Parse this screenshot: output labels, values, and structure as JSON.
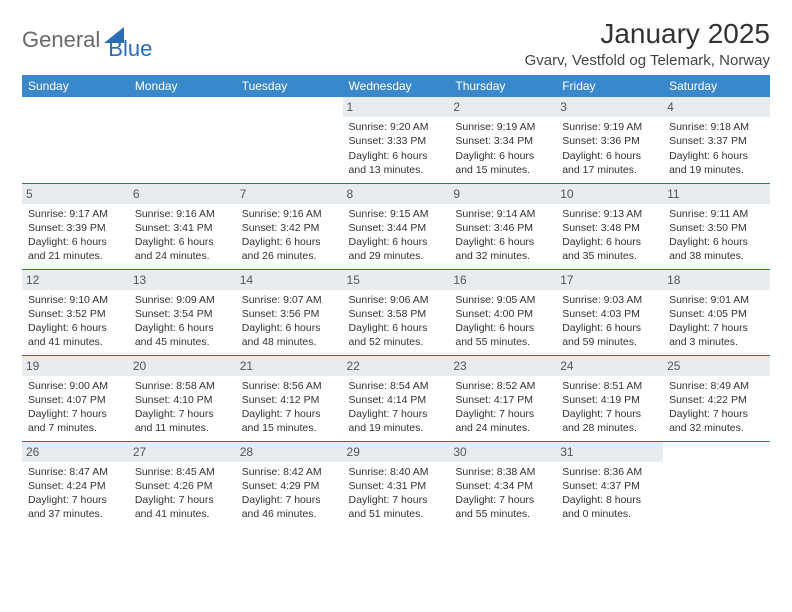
{
  "brand": {
    "part1": "General",
    "part2": "Blue"
  },
  "title": "January 2025",
  "location": "Gvarv, Vestfold og Telemark, Norway",
  "colors": {
    "header_bg": "#3a88cc",
    "header_text": "#ffffff",
    "daynum_bg": "#e9ecef",
    "row_border": "#2a6db5",
    "logo_triangle": "#2a6db5",
    "text": "#333333"
  },
  "weekdays": [
    "Sunday",
    "Monday",
    "Tuesday",
    "Wednesday",
    "Thursday",
    "Friday",
    "Saturday"
  ],
  "weeks": [
    [
      {
        "day": "",
        "sunrise": "",
        "sunset": "",
        "daylight": ""
      },
      {
        "day": "",
        "sunrise": "",
        "sunset": "",
        "daylight": ""
      },
      {
        "day": "",
        "sunrise": "",
        "sunset": "",
        "daylight": ""
      },
      {
        "day": "1",
        "sunrise": "Sunrise: 9:20 AM",
        "sunset": "Sunset: 3:33 PM",
        "daylight": "Daylight: 6 hours and 13 minutes."
      },
      {
        "day": "2",
        "sunrise": "Sunrise: 9:19 AM",
        "sunset": "Sunset: 3:34 PM",
        "daylight": "Daylight: 6 hours and 15 minutes."
      },
      {
        "day": "3",
        "sunrise": "Sunrise: 9:19 AM",
        "sunset": "Sunset: 3:36 PM",
        "daylight": "Daylight: 6 hours and 17 minutes."
      },
      {
        "day": "4",
        "sunrise": "Sunrise: 9:18 AM",
        "sunset": "Sunset: 3:37 PM",
        "daylight": "Daylight: 6 hours and 19 minutes."
      }
    ],
    [
      {
        "day": "5",
        "sunrise": "Sunrise: 9:17 AM",
        "sunset": "Sunset: 3:39 PM",
        "daylight": "Daylight: 6 hours and 21 minutes."
      },
      {
        "day": "6",
        "sunrise": "Sunrise: 9:16 AM",
        "sunset": "Sunset: 3:41 PM",
        "daylight": "Daylight: 6 hours and 24 minutes."
      },
      {
        "day": "7",
        "sunrise": "Sunrise: 9:16 AM",
        "sunset": "Sunset: 3:42 PM",
        "daylight": "Daylight: 6 hours and 26 minutes."
      },
      {
        "day": "8",
        "sunrise": "Sunrise: 9:15 AM",
        "sunset": "Sunset: 3:44 PM",
        "daylight": "Daylight: 6 hours and 29 minutes."
      },
      {
        "day": "9",
        "sunrise": "Sunrise: 9:14 AM",
        "sunset": "Sunset: 3:46 PM",
        "daylight": "Daylight: 6 hours and 32 minutes."
      },
      {
        "day": "10",
        "sunrise": "Sunrise: 9:13 AM",
        "sunset": "Sunset: 3:48 PM",
        "daylight": "Daylight: 6 hours and 35 minutes."
      },
      {
        "day": "11",
        "sunrise": "Sunrise: 9:11 AM",
        "sunset": "Sunset: 3:50 PM",
        "daylight": "Daylight: 6 hours and 38 minutes."
      }
    ],
    [
      {
        "day": "12",
        "sunrise": "Sunrise: 9:10 AM",
        "sunset": "Sunset: 3:52 PM",
        "daylight": "Daylight: 6 hours and 41 minutes."
      },
      {
        "day": "13",
        "sunrise": "Sunrise: 9:09 AM",
        "sunset": "Sunset: 3:54 PM",
        "daylight": "Daylight: 6 hours and 45 minutes."
      },
      {
        "day": "14",
        "sunrise": "Sunrise: 9:07 AM",
        "sunset": "Sunset: 3:56 PM",
        "daylight": "Daylight: 6 hours and 48 minutes."
      },
      {
        "day": "15",
        "sunrise": "Sunrise: 9:06 AM",
        "sunset": "Sunset: 3:58 PM",
        "daylight": "Daylight: 6 hours and 52 minutes."
      },
      {
        "day": "16",
        "sunrise": "Sunrise: 9:05 AM",
        "sunset": "Sunset: 4:00 PM",
        "daylight": "Daylight: 6 hours and 55 minutes."
      },
      {
        "day": "17",
        "sunrise": "Sunrise: 9:03 AM",
        "sunset": "Sunset: 4:03 PM",
        "daylight": "Daylight: 6 hours and 59 minutes."
      },
      {
        "day": "18",
        "sunrise": "Sunrise: 9:01 AM",
        "sunset": "Sunset: 4:05 PM",
        "daylight": "Daylight: 7 hours and 3 minutes."
      }
    ],
    [
      {
        "day": "19",
        "sunrise": "Sunrise: 9:00 AM",
        "sunset": "Sunset: 4:07 PM",
        "daylight": "Daylight: 7 hours and 7 minutes."
      },
      {
        "day": "20",
        "sunrise": "Sunrise: 8:58 AM",
        "sunset": "Sunset: 4:10 PM",
        "daylight": "Daylight: 7 hours and 11 minutes."
      },
      {
        "day": "21",
        "sunrise": "Sunrise: 8:56 AM",
        "sunset": "Sunset: 4:12 PM",
        "daylight": "Daylight: 7 hours and 15 minutes."
      },
      {
        "day": "22",
        "sunrise": "Sunrise: 8:54 AM",
        "sunset": "Sunset: 4:14 PM",
        "daylight": "Daylight: 7 hours and 19 minutes."
      },
      {
        "day": "23",
        "sunrise": "Sunrise: 8:52 AM",
        "sunset": "Sunset: 4:17 PM",
        "daylight": "Daylight: 7 hours and 24 minutes."
      },
      {
        "day": "24",
        "sunrise": "Sunrise: 8:51 AM",
        "sunset": "Sunset: 4:19 PM",
        "daylight": "Daylight: 7 hours and 28 minutes."
      },
      {
        "day": "25",
        "sunrise": "Sunrise: 8:49 AM",
        "sunset": "Sunset: 4:22 PM",
        "daylight": "Daylight: 7 hours and 32 minutes."
      }
    ],
    [
      {
        "day": "26",
        "sunrise": "Sunrise: 8:47 AM",
        "sunset": "Sunset: 4:24 PM",
        "daylight": "Daylight: 7 hours and 37 minutes."
      },
      {
        "day": "27",
        "sunrise": "Sunrise: 8:45 AM",
        "sunset": "Sunset: 4:26 PM",
        "daylight": "Daylight: 7 hours and 41 minutes."
      },
      {
        "day": "28",
        "sunrise": "Sunrise: 8:42 AM",
        "sunset": "Sunset: 4:29 PM",
        "daylight": "Daylight: 7 hours and 46 minutes."
      },
      {
        "day": "29",
        "sunrise": "Sunrise: 8:40 AM",
        "sunset": "Sunset: 4:31 PM",
        "daylight": "Daylight: 7 hours and 51 minutes."
      },
      {
        "day": "30",
        "sunrise": "Sunrise: 8:38 AM",
        "sunset": "Sunset: 4:34 PM",
        "daylight": "Daylight: 7 hours and 55 minutes."
      },
      {
        "day": "31",
        "sunrise": "Sunrise: 8:36 AM",
        "sunset": "Sunset: 4:37 PM",
        "daylight": "Daylight: 8 hours and 0 minutes."
      },
      {
        "day": "",
        "sunrise": "",
        "sunset": "",
        "daylight": ""
      }
    ]
  ]
}
